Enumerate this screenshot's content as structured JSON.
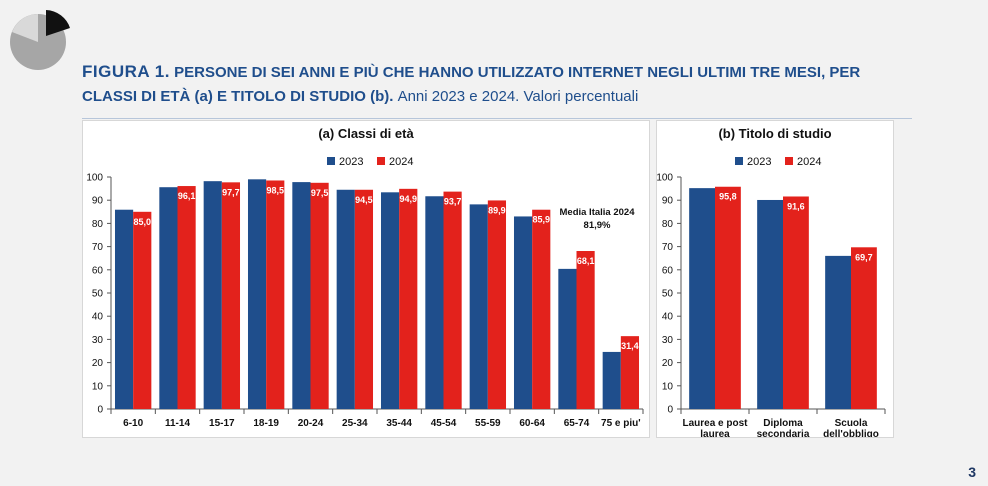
{
  "title": {
    "figure_label": "FIGURA 1.",
    "line1_rest": "PERSONE DI SEI ANNI E PIÙ CHE HANNO UTILIZZATO INTERNET NEGLI ULTIMI TRE MESI, PER",
    "line2_bold": "CLASSI DI ETÀ (a) E TITOLO DI STUDIO (b).",
    "line2_light": "Anni 2023 e 2024. Valori percentuali"
  },
  "page_number": "3",
  "colors": {
    "series_2023": "#1f4e8c",
    "series_2024": "#e3221c",
    "title": "#1f4e8c"
  },
  "chart_data": [
    {
      "type": "bar",
      "title": "(a) Classi di età",
      "categories": [
        "6-10",
        "11-14",
        "15-17",
        "18-19",
        "20-24",
        "25-34",
        "35-44",
        "45-54",
        "55-59",
        "60-64",
        "65-74",
        "75 e piu'"
      ],
      "series": [
        {
          "name": "2023",
          "values": [
            85.9,
            95.6,
            98.2,
            99.0,
            97.8,
            94.5,
            93.4,
            91.7,
            88.2,
            83.0,
            60.4,
            24.6
          ]
        },
        {
          "name": "2024",
          "values": [
            85.0,
            96.1,
            97.7,
            98.5,
            97.5,
            94.5,
            94.9,
            93.7,
            89.9,
            85.9,
            68.1,
            31.4
          ],
          "labels": [
            "85,0",
            "96,1",
            "97,7",
            "98,5",
            "97,5",
            "94,5",
            "94,9",
            "93,7",
            "89,9",
            "85,9",
            "68,1",
            "31,4"
          ]
        }
      ],
      "ylim": [
        0,
        100
      ],
      "yticks": [
        0,
        10,
        20,
        30,
        40,
        50,
        60,
        70,
        80,
        90,
        100
      ],
      "grid": false,
      "legend": "top-center",
      "annotation": {
        "line1": "Media Italia 2024",
        "line2": "81,9%"
      }
    },
    {
      "type": "bar",
      "title": "(b) Titolo di studio",
      "categories": [
        "Laurea e post laurea",
        "Diploma secondaria",
        "Scuola dell'obbligo"
      ],
      "category_lines": [
        [
          "Laurea e post",
          "laurea"
        ],
        [
          "Diploma",
          "secondaria"
        ],
        [
          "Scuola",
          "dell'obbligo"
        ]
      ],
      "series": [
        {
          "name": "2023",
          "values": [
            95.2,
            90.1,
            66.0
          ]
        },
        {
          "name": "2024",
          "values": [
            95.8,
            91.6,
            69.7
          ],
          "labels": [
            "95,8",
            "91,6",
            "69,7"
          ]
        }
      ],
      "ylim": [
        0,
        100
      ],
      "yticks": [
        0,
        10,
        20,
        30,
        40,
        50,
        60,
        70,
        80,
        90,
        100
      ],
      "grid": false,
      "legend": "top-center"
    }
  ]
}
